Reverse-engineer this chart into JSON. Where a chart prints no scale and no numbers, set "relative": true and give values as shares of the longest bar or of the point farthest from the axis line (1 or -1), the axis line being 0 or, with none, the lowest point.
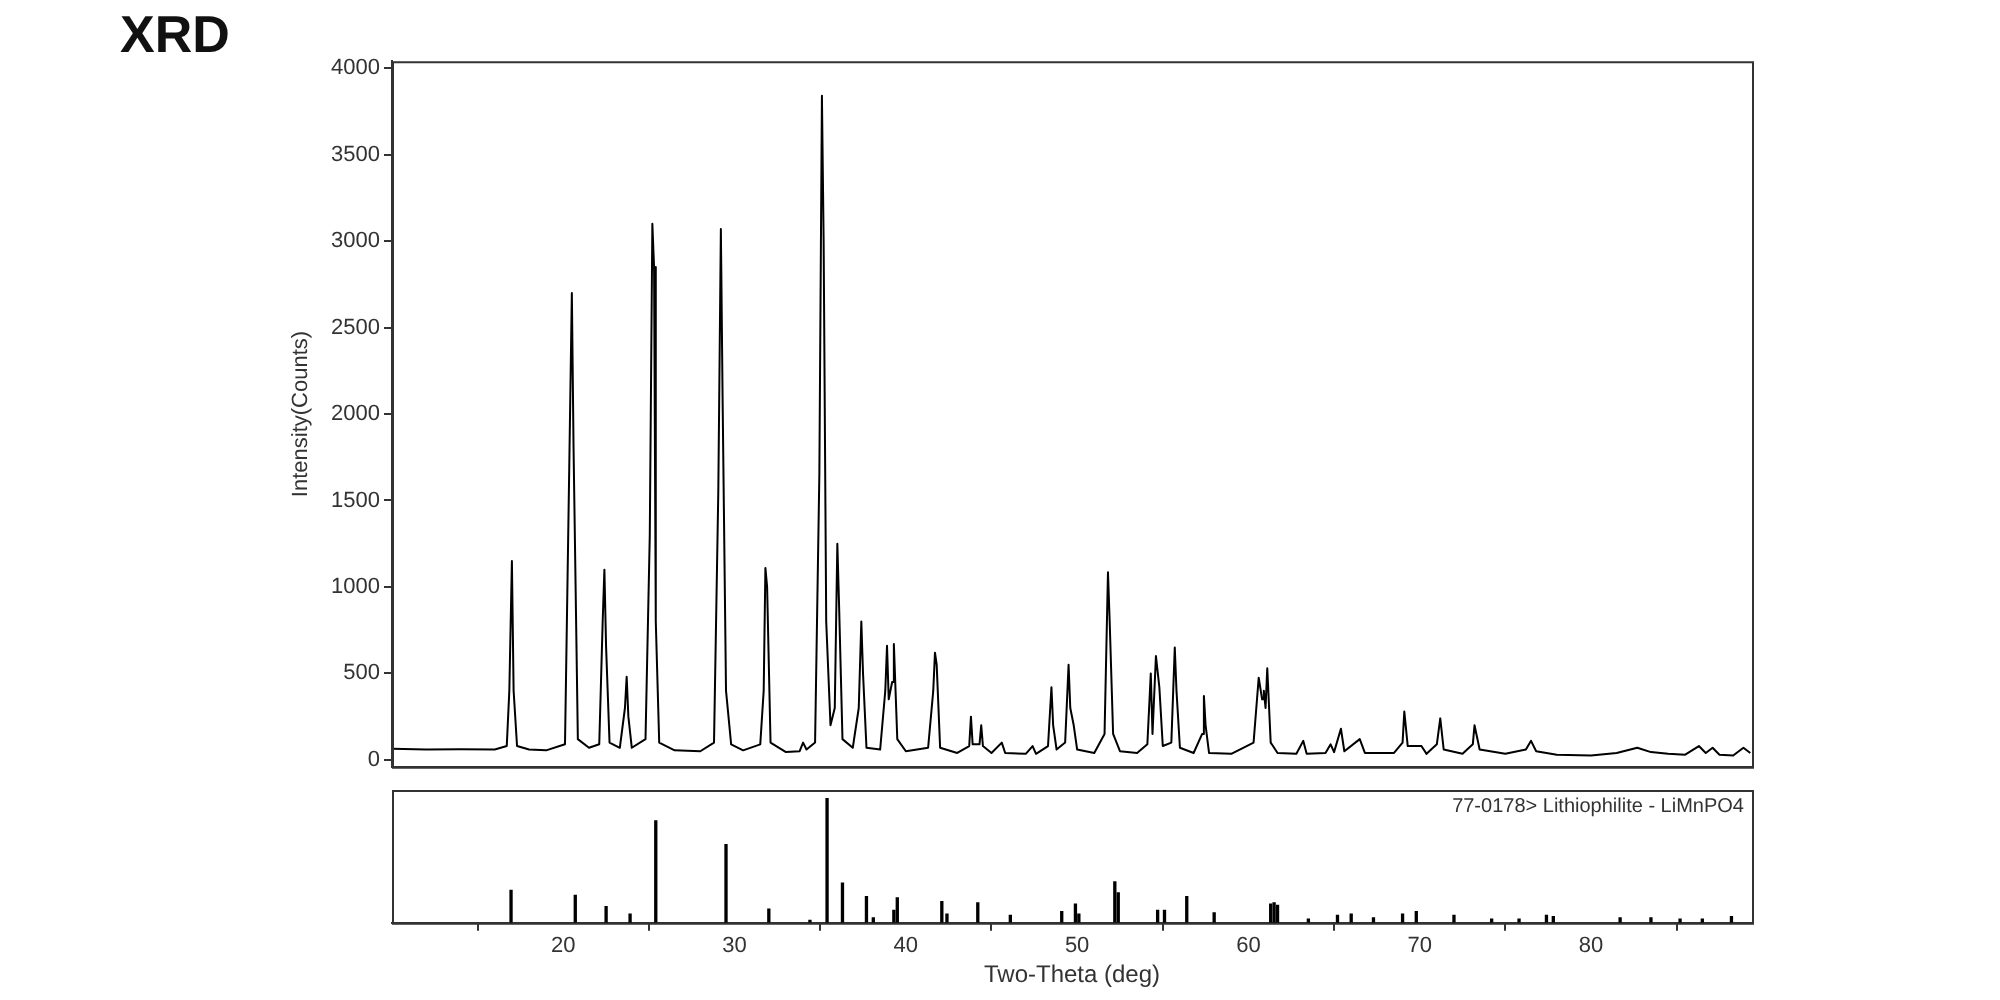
{
  "chart_data": [
    {
      "type": "line",
      "title": "XRD",
      "ylabel": "Intensity(Counts)",
      "xlim": [
        10,
        89.4
      ],
      "xticks": [
        20,
        30,
        40,
        50,
        60,
        70,
        80
      ],
      "ylim": [
        -40,
        4040
      ],
      "yticks": [
        0,
        500,
        1000,
        1500,
        2000,
        2500,
        3000,
        3500,
        4000
      ],
      "tick_labels": "y",
      "marker": "none",
      "line_style": "solid",
      "color": "#000000",
      "x": [
        10,
        12,
        14,
        16,
        16.7,
        16.85,
        17.0,
        17.1,
        17.3,
        18,
        19,
        20.1,
        20.35,
        20.5,
        20.6,
        20.85,
        21.5,
        22.1,
        22.3,
        22.4,
        22.5,
        22.7,
        23.3,
        23.6,
        23.7,
        23.8,
        24.0,
        24.8,
        25.05,
        25.2,
        25.3,
        25.4,
        25.6,
        26.5,
        28,
        28.8,
        29.05,
        29.2,
        29.3,
        29.5,
        29.8,
        30.5,
        31.5,
        31.7,
        31.8,
        31.9,
        32.1,
        33,
        33.8,
        34.0,
        34.2,
        34.7,
        34.95,
        35.1,
        35.2,
        35.35,
        35.6,
        35.85,
        36.0,
        36.1,
        36.3,
        36.9,
        37.25,
        37.4,
        37.5,
        37.7,
        38.5,
        38.8,
        38.9,
        39.0,
        39.2,
        39.3,
        39.5,
        40.0,
        41.3,
        41.6,
        41.7,
        41.8,
        42.0,
        43,
        43.7,
        43.8,
        43.9,
        44.3,
        44.4,
        44.5,
        45.0,
        45.6,
        45.8,
        47.0,
        47.4,
        47.6,
        48.3,
        48.5,
        48.6,
        48.8,
        49.3,
        49.5,
        49.6,
        49.8,
        50.0,
        51.0,
        51.6,
        51.8,
        51.9,
        52.1,
        52.5,
        53.5,
        54.1,
        54.3,
        54.4,
        54.6,
        54.8,
        55.0,
        55.5,
        55.7,
        55.8,
        56.0,
        56.8,
        57.3,
        57.4,
        57.5,
        57.7,
        59,
        60.3,
        60.6,
        60.8,
        60.9,
        61.0,
        61.1,
        61.3,
        61.7,
        62.8,
        63.2,
        63.4,
        64.5,
        64.8,
        65.0,
        65.4,
        65.6,
        66.5,
        66.8,
        68.5,
        69.0,
        69.1,
        69.3,
        70.1,
        70.4,
        71.0,
        71.2,
        71.4,
        72.5,
        73.1,
        73.2,
        73.5,
        75,
        76.2,
        76.5,
        76.8,
        78,
        80,
        81.5,
        82.7,
        83.5,
        84.5,
        85.5,
        86.3,
        86.7,
        87.1,
        87.5,
        88.3,
        88.9,
        89.3
      ],
      "values": [
        65,
        60,
        62,
        60,
        80,
        400,
        1150,
        400,
        80,
        60,
        55,
        90,
        1700,
        2700,
        1800,
        120,
        70,
        90,
        800,
        1100,
        650,
        100,
        70,
        300,
        480,
        250,
        70,
        120,
        1300,
        3100,
        2850,
        800,
        100,
        55,
        50,
        100,
        1550,
        3070,
        2100,
        400,
        90,
        55,
        90,
        400,
        1110,
        1000,
        100,
        45,
        50,
        100,
        60,
        100,
        1650,
        3840,
        3000,
        800,
        200,
        300,
        1250,
        900,
        120,
        70,
        300,
        800,
        500,
        70,
        60,
        400,
        660,
        350,
        450,
        670,
        120,
        50,
        70,
        400,
        620,
        550,
        70,
        40,
        80,
        250,
        90,
        90,
        200,
        80,
        40,
        100,
        40,
        35,
        80,
        35,
        80,
        420,
        200,
        60,
        100,
        550,
        300,
        200,
        60,
        40,
        150,
        1085,
        800,
        150,
        50,
        40,
        90,
        500,
        150,
        600,
        420,
        80,
        100,
        650,
        400,
        70,
        40,
        150,
        370,
        200,
        40,
        35,
        100,
        475,
        350,
        400,
        300,
        530,
        100,
        40,
        35,
        110,
        35,
        40,
        90,
        45,
        180,
        50,
        120,
        40,
        40,
        100,
        280,
        80,
        80,
        35,
        90,
        240,
        60,
        35,
        90,
        200,
        60,
        35,
        60,
        110,
        50,
        30,
        25,
        40,
        70,
        45,
        35,
        30,
        80,
        40,
        70,
        30,
        25,
        70,
        40
      ]
    },
    {
      "type": "bar",
      "relative": true,
      "xlabel": "Two-Theta (deg)",
      "xlim": [
        10,
        89.4
      ],
      "xticks": [
        20,
        30,
        40,
        50,
        60,
        70,
        80
      ],
      "tick_labels": "x",
      "color": "#000000",
      "annotations": [
        "77-0178> Lithiophilite - LiMnPO4"
      ],
      "x": [
        16.95,
        20.7,
        22.5,
        23.9,
        25.4,
        29.5,
        32.0,
        34.4,
        35.4,
        36.3,
        37.7,
        38.1,
        39.3,
        39.5,
        42.1,
        42.4,
        44.2,
        46.1,
        49.1,
        49.9,
        50.1,
        52.2,
        52.4,
        54.7,
        55.1,
        56.4,
        58.0,
        61.3,
        61.5,
        61.7,
        63.5,
        65.2,
        66.0,
        67.3,
        69.0,
        69.8,
        72.0,
        74.2,
        75.8,
        77.4,
        77.8,
        81.7,
        83.5,
        85.2,
        86.5,
        88.2
      ],
      "values": [
        0.26,
        0.22,
        0.13,
        0.07,
        0.82,
        0.63,
        0.11,
        0.02,
        1,
        0.32,
        0.21,
        0.04,
        0.1,
        0.2,
        0.17,
        0.07,
        0.16,
        0.06,
        0.09,
        0.15,
        0.07,
        0.33,
        0.24,
        0.1,
        0.1,
        0.21,
        0.08,
        0.15,
        0.16,
        0.14,
        0.03,
        0.06,
        0.07,
        0.04,
        0.07,
        0.09,
        0.06,
        0.03,
        0.03,
        0.06,
        0.05,
        0.04,
        0.04,
        0.03,
        0.03,
        0.05
      ]
    }
  ]
}
